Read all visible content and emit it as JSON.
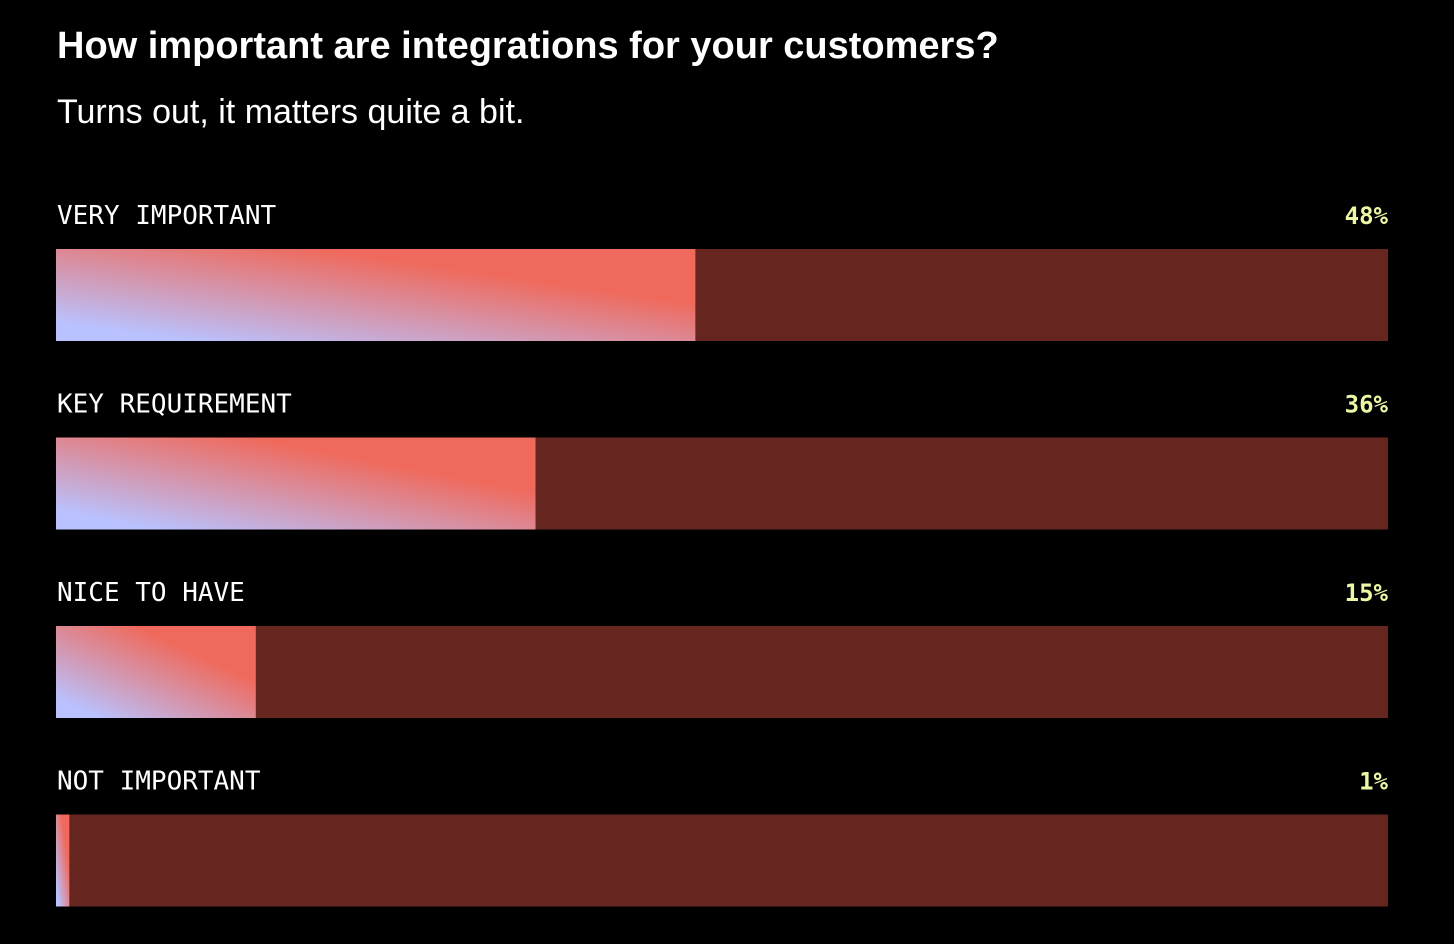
{
  "chart_data": {
    "type": "bar",
    "orientation": "horizontal",
    "title": "How important are integrations for your customers?",
    "subtitle": "Turns out, it matters quite a bit.",
    "categories": [
      "VERY IMPORTANT",
      "KEY REQUIREMENT",
      "NICE TO HAVE",
      "NOT IMPORTANT"
    ],
    "values": [
      48,
      36,
      15,
      1
    ],
    "value_labels": [
      "48%",
      "36%",
      "15%",
      "1%"
    ],
    "xlim": [
      0,
      100
    ],
    "gradient": [
      "#b9c2ff",
      "#ef6a5d"
    ],
    "track_color": "#66261f",
    "label_color": "#eef7a4"
  }
}
